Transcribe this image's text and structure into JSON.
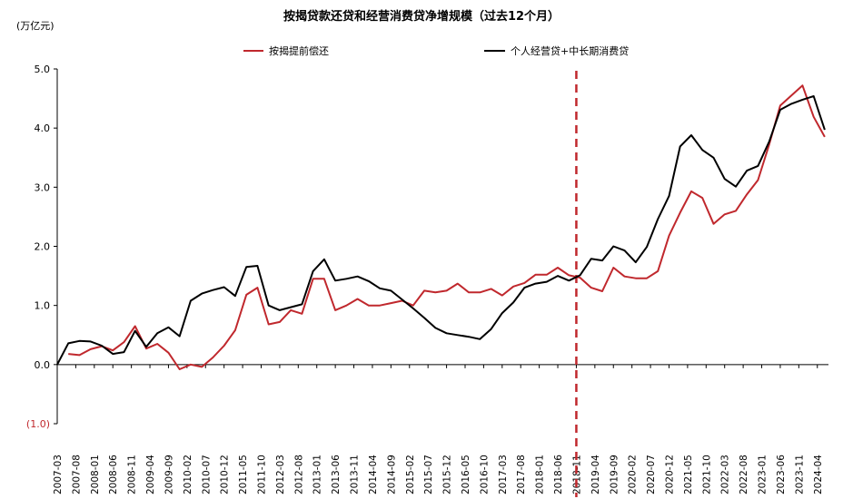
{
  "chart_data": {
    "type": "line",
    "title": "按揭贷款还贷和经营消费贷净增规模（过去12个月）",
    "unit": "(万亿元)",
    "ylim": [
      -1.0,
      5.0
    ],
    "yticks": [
      "(1.0)",
      "0.0",
      "1.0",
      "2.0",
      "3.0",
      "4.0",
      "5.0"
    ],
    "grid": false,
    "legend_position": "top",
    "categories": [
      "2007-03",
      "2007-08",
      "2008-01",
      "2008-06",
      "2008-11",
      "2009-04",
      "2009-09",
      "2010-02",
      "2010-07",
      "2010-12",
      "2011-05",
      "2011-10",
      "2012-03",
      "2012-08",
      "2013-01",
      "2013-06",
      "2013-11",
      "2014-04",
      "2014-09",
      "2015-02",
      "2015-07",
      "2015-12",
      "2016-05",
      "2016-10",
      "2017-03",
      "2017-08",
      "2018-01",
      "2018-06",
      "2018-11",
      "2019-04",
      "2019-09",
      "2020-02",
      "2020-07",
      "2020-12",
      "2021-05",
      "2021-10",
      "2022-03",
      "2022-08",
      "2023-01",
      "2023-06",
      "2023-11",
      "2024-04"
    ],
    "series": [
      {
        "name": "按揭提前偿还",
        "color": "#c0282d",
        "points": [
          [
            "2007-06",
            0.18
          ],
          [
            "2007-09",
            0.16
          ],
          [
            "2007-12",
            0.26
          ],
          [
            "2008-03",
            0.31
          ],
          [
            "2008-06",
            0.24
          ],
          [
            "2008-09",
            0.38
          ],
          [
            "2008-12",
            0.65
          ],
          [
            "2009-03",
            0.27
          ],
          [
            "2009-06",
            0.35
          ],
          [
            "2009-09",
            0.2
          ],
          [
            "2009-12",
            -0.08
          ],
          [
            "2010-03",
            0.0
          ],
          [
            "2010-06",
            -0.04
          ],
          [
            "2010-09",
            0.12
          ],
          [
            "2010-12",
            0.32
          ],
          [
            "2011-03",
            0.58
          ],
          [
            "2011-06",
            1.18
          ],
          [
            "2011-09",
            1.3
          ],
          [
            "2011-12",
            0.68
          ],
          [
            "2012-03",
            0.72
          ],
          [
            "2012-06",
            0.92
          ],
          [
            "2012-09",
            0.86
          ],
          [
            "2012-12",
            1.45
          ],
          [
            "2013-03",
            1.45
          ],
          [
            "2013-06",
            0.92
          ],
          [
            "2013-09",
            1.0
          ],
          [
            "2013-12",
            1.11
          ],
          [
            "2014-03",
            1.0
          ],
          [
            "2014-06",
            1.0
          ],
          [
            "2014-09",
            1.04
          ],
          [
            "2014-12",
            1.08
          ],
          [
            "2015-03",
            1.0
          ],
          [
            "2015-06",
            1.25
          ],
          [
            "2015-09",
            1.22
          ],
          [
            "2015-12",
            1.25
          ],
          [
            "2016-03",
            1.37
          ],
          [
            "2016-06",
            1.22
          ],
          [
            "2016-09",
            1.22
          ],
          [
            "2016-12",
            1.28
          ],
          [
            "2017-03",
            1.17
          ],
          [
            "2017-06",
            1.32
          ],
          [
            "2017-09",
            1.38
          ],
          [
            "2017-12",
            1.52
          ],
          [
            "2018-03",
            1.52
          ],
          [
            "2018-06",
            1.64
          ],
          [
            "2018-09",
            1.51
          ],
          [
            "2018-12",
            1.47
          ],
          [
            "2019-03",
            1.3
          ],
          [
            "2019-06",
            1.24
          ],
          [
            "2019-09",
            1.64
          ],
          [
            "2019-12",
            1.49
          ],
          [
            "2020-03",
            1.46
          ],
          [
            "2020-06",
            1.46
          ],
          [
            "2020-09",
            1.58
          ],
          [
            "2020-12",
            2.18
          ],
          [
            "2021-03",
            2.57
          ],
          [
            "2021-06",
            2.93
          ],
          [
            "2021-09",
            2.82
          ],
          [
            "2021-12",
            2.38
          ],
          [
            "2022-03",
            2.54
          ],
          [
            "2022-06",
            2.6
          ],
          [
            "2022-09",
            2.88
          ],
          [
            "2022-12",
            3.12
          ],
          [
            "2023-03",
            3.72
          ],
          [
            "2023-06",
            4.38
          ],
          [
            "2023-09",
            4.55
          ],
          [
            "2023-12",
            4.72
          ],
          [
            "2024-03",
            4.19
          ],
          [
            "2024-06",
            3.85
          ]
        ]
      },
      {
        "name": "个人经营贷+中长期消费贷",
        "color": "#000000",
        "points": [
          [
            "2007-03",
            0.0
          ],
          [
            "2007-06",
            0.36
          ],
          [
            "2007-09",
            0.4
          ],
          [
            "2007-12",
            0.39
          ],
          [
            "2008-03",
            0.32
          ],
          [
            "2008-06",
            0.18
          ],
          [
            "2008-09",
            0.21
          ],
          [
            "2008-12",
            0.57
          ],
          [
            "2009-03",
            0.3
          ],
          [
            "2009-06",
            0.53
          ],
          [
            "2009-09",
            0.63
          ],
          [
            "2009-12",
            0.48
          ],
          [
            "2010-03",
            1.08
          ],
          [
            "2010-06",
            1.2
          ],
          [
            "2010-09",
            1.26
          ],
          [
            "2010-12",
            1.31
          ],
          [
            "2011-03",
            1.16
          ],
          [
            "2011-06",
            1.65
          ],
          [
            "2011-09",
            1.67
          ],
          [
            "2011-12",
            1.0
          ],
          [
            "2012-03",
            0.92
          ],
          [
            "2012-06",
            0.97
          ],
          [
            "2012-09",
            1.02
          ],
          [
            "2012-12",
            1.58
          ],
          [
            "2013-03",
            1.78
          ],
          [
            "2013-06",
            1.42
          ],
          [
            "2013-09",
            1.45
          ],
          [
            "2013-12",
            1.49
          ],
          [
            "2014-03",
            1.41
          ],
          [
            "2014-06",
            1.29
          ],
          [
            "2014-09",
            1.25
          ],
          [
            "2014-12",
            1.1
          ],
          [
            "2015-03",
            0.95
          ],
          [
            "2015-06",
            0.79
          ],
          [
            "2015-09",
            0.62
          ],
          [
            "2015-12",
            0.53
          ],
          [
            "2016-03",
            0.5
          ],
          [
            "2016-06",
            0.47
          ],
          [
            "2016-09",
            0.43
          ],
          [
            "2016-12",
            0.6
          ],
          [
            "2017-03",
            0.87
          ],
          [
            "2017-06",
            1.05
          ],
          [
            "2017-09",
            1.3
          ],
          [
            "2017-12",
            1.37
          ],
          [
            "2018-03",
            1.4
          ],
          [
            "2018-06",
            1.5
          ],
          [
            "2018-09",
            1.42
          ],
          [
            "2018-12",
            1.51
          ],
          [
            "2019-03",
            1.79
          ],
          [
            "2019-06",
            1.76
          ],
          [
            "2019-09",
            2.0
          ],
          [
            "2019-12",
            1.93
          ],
          [
            "2020-03",
            1.73
          ],
          [
            "2020-06",
            1.99
          ],
          [
            "2020-09",
            2.46
          ],
          [
            "2020-12",
            2.85
          ],
          [
            "2021-03",
            3.69
          ],
          [
            "2021-06",
            3.88
          ],
          [
            "2021-09",
            3.63
          ],
          [
            "2021-12",
            3.5
          ],
          [
            "2022-03",
            3.14
          ],
          [
            "2022-06",
            3.01
          ],
          [
            "2022-09",
            3.28
          ],
          [
            "2022-12",
            3.36
          ],
          [
            "2023-03",
            3.77
          ],
          [
            "2023-06",
            4.31
          ],
          [
            "2023-09",
            4.41
          ],
          [
            "2023-12",
            4.48
          ],
          [
            "2024-03",
            4.54
          ],
          [
            "2024-06",
            3.97
          ]
        ]
      }
    ],
    "reference_line": {
      "x": "2018-11",
      "color": "#c0282d",
      "style": "dashed"
    }
  }
}
